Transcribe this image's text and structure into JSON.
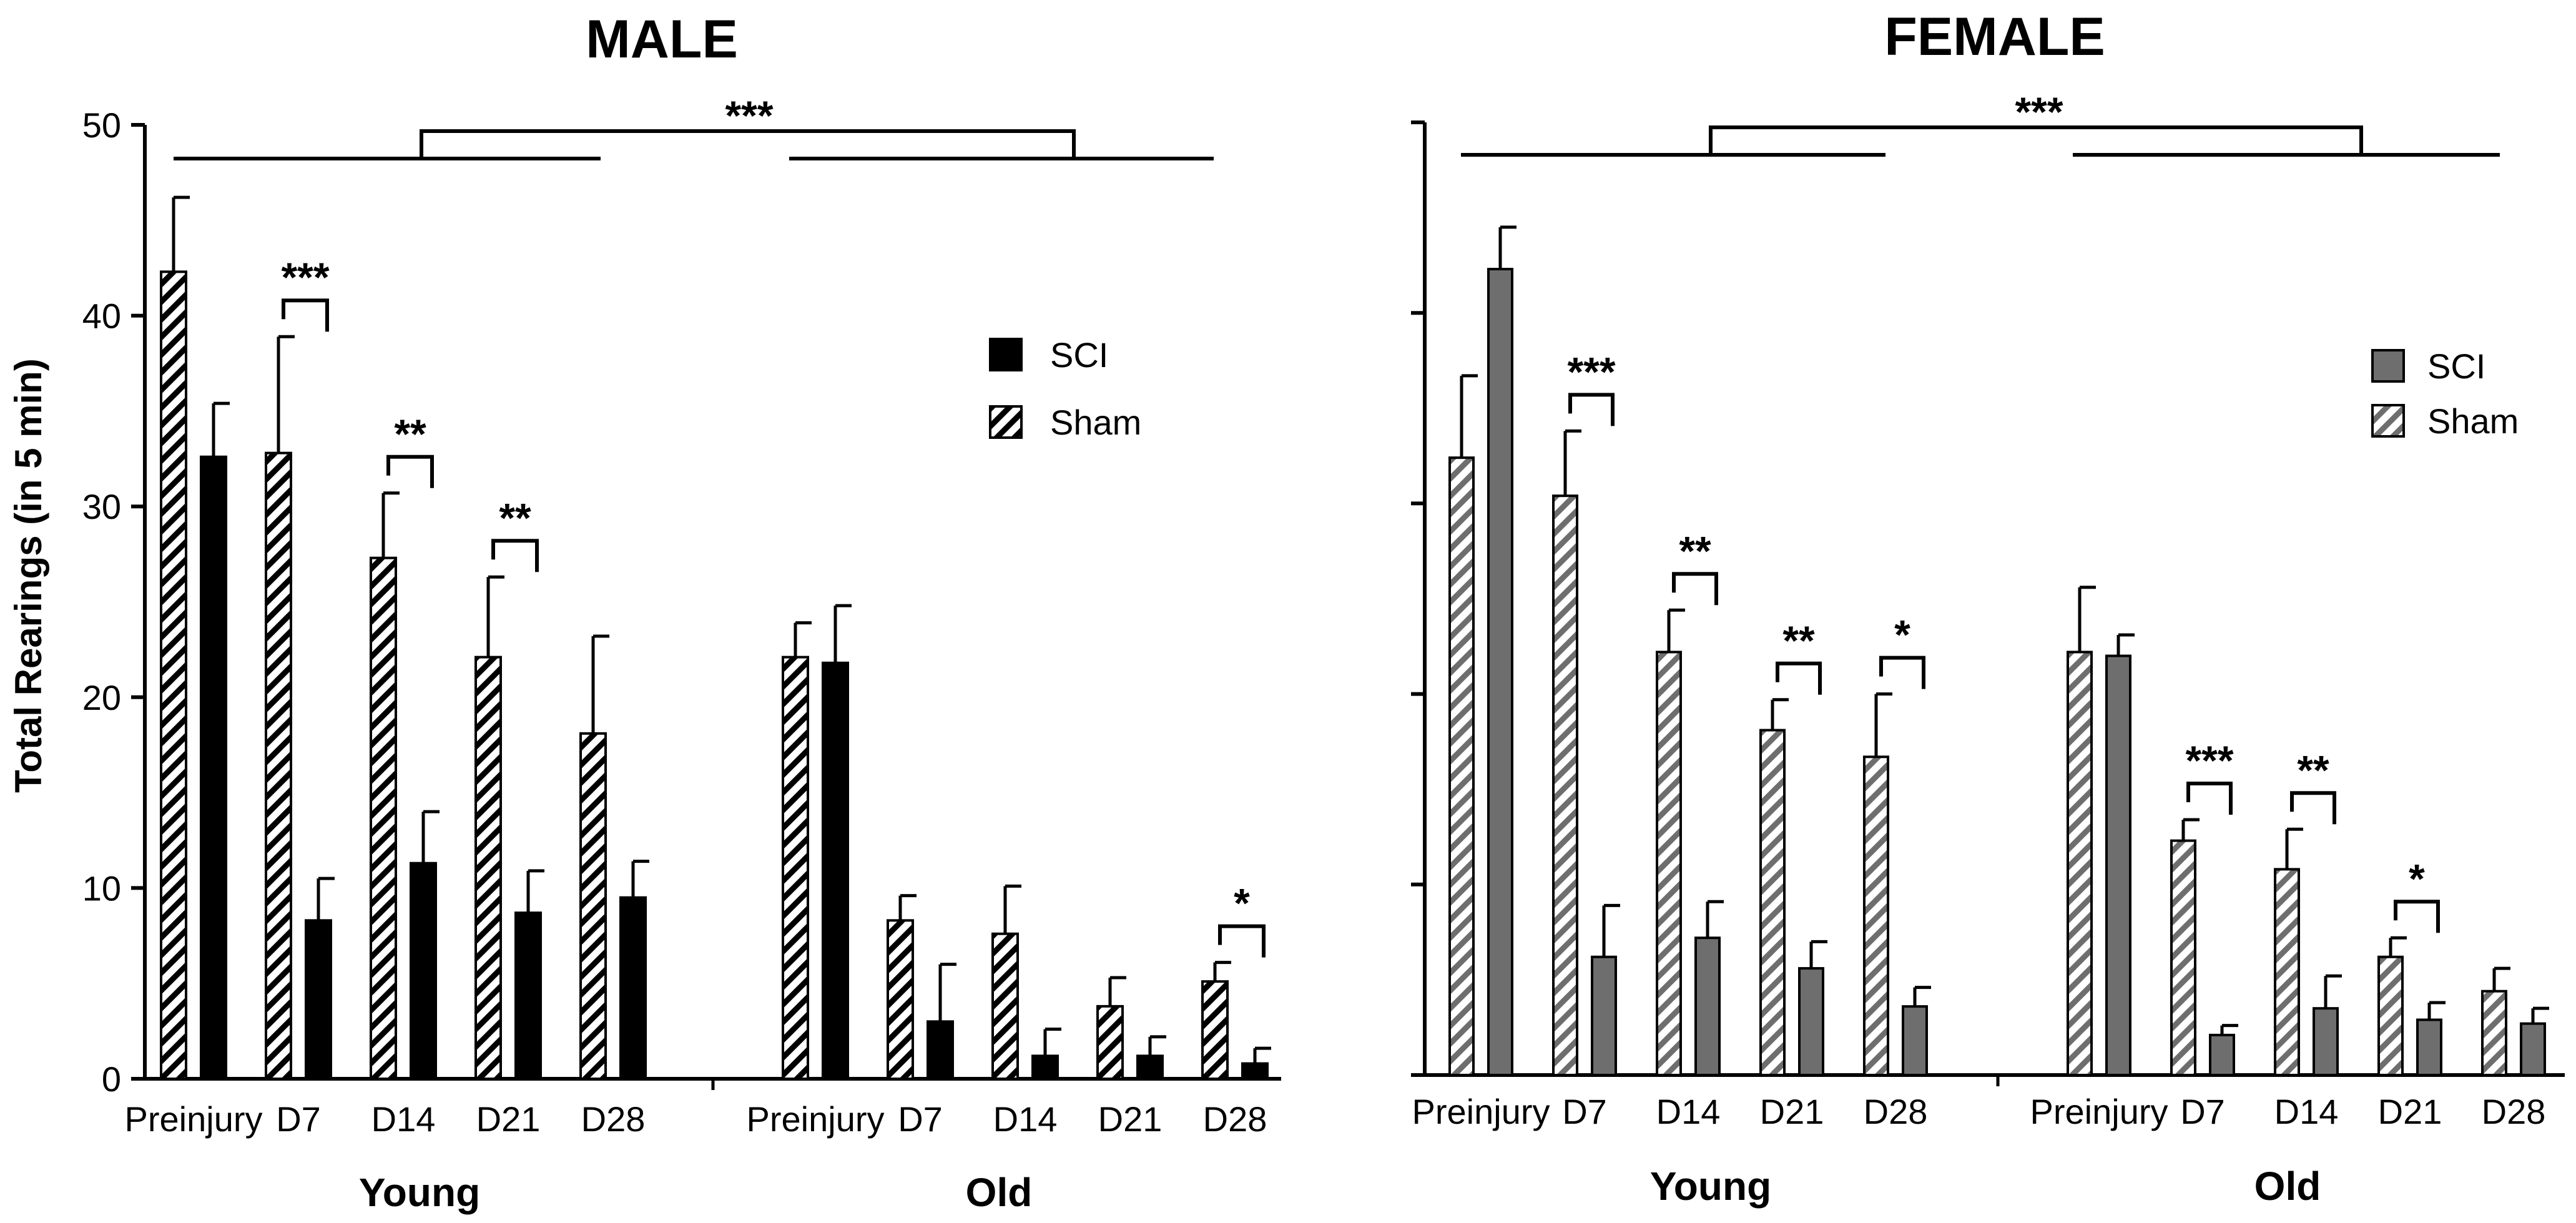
{
  "chart_data": [
    {
      "type": "bar",
      "title": "MALE",
      "xlabel": "",
      "ylabel": "Total Rearings (in 5 min)",
      "ylim": [
        0,
        50
      ],
      "yticks": [
        0,
        10,
        20,
        30,
        40,
        50
      ],
      "groups": [
        "Young",
        "Old"
      ],
      "categories": [
        "Preinjury",
        "D7",
        "D14",
        "D21",
        "D28"
      ],
      "legend": [
        "SCI",
        "Sham"
      ],
      "legend_position": "top-right",
      "series": [
        {
          "name": "Sham",
          "young": [
            42.3,
            32.8,
            27.3,
            22.1,
            18.1
          ],
          "young_err": [
            3.9,
            6.1,
            3.4,
            4.2,
            5.1
          ],
          "old": [
            22.1,
            8.3,
            7.6,
            3.8,
            5.1
          ],
          "old_err": [
            1.8,
            1.3,
            2.5,
            1.5,
            1.0
          ]
        },
        {
          "name": "SCI",
          "young": [
            32.6,
            8.3,
            11.3,
            8.7,
            9.5
          ],
          "young_err": [
            2.8,
            2.2,
            2.7,
            2.2,
            1.9
          ],
          "old": [
            21.8,
            3.0,
            1.2,
            1.2,
            0.8
          ],
          "old_err": [
            3.0,
            3.0,
            1.4,
            1.0,
            0.8
          ]
        }
      ],
      "significance": {
        "young": [
          "",
          "***",
          "**",
          "**",
          ""
        ],
        "old": [
          "",
          "",
          "",
          "",
          "*"
        ],
        "group": "***"
      }
    },
    {
      "type": "bar",
      "title": "FEMALE",
      "xlabel": "",
      "ylabel": "",
      "ylim": [
        0,
        50
      ],
      "groups": [
        "Young",
        "Old"
      ],
      "categories": [
        "Preinjury",
        "D7",
        "D14",
        "D21",
        "D28"
      ],
      "legend": [
        "SCI",
        "Sham"
      ],
      "legend_position": "top-right",
      "series": [
        {
          "name": "Sham",
          "young": [
            32.4,
            30.4,
            22.2,
            18.1,
            16.7
          ],
          "young_err": [
            4.3,
            3.4,
            2.2,
            1.6,
            3.3
          ],
          "old": [
            22.2,
            12.3,
            10.8,
            6.2,
            4.4
          ],
          "old_err": [
            3.4,
            1.1,
            2.1,
            1.0,
            1.2
          ]
        },
        {
          "name": "SCI",
          "young": [
            42.3,
            6.2,
            7.2,
            5.6,
            3.6
          ],
          "young_err": [
            2.2,
            2.7,
            1.9,
            1.4,
            1.0
          ],
          "old": [
            22.0,
            2.1,
            3.5,
            2.9,
            2.7
          ],
          "old_err": [
            1.1,
            0.5,
            1.7,
            0.9,
            0.8
          ]
        }
      ],
      "significance": {
        "young": [
          "",
          "***",
          "**",
          "**",
          "*"
        ],
        "old": [
          "",
          "***",
          "**",
          "*",
          ""
        ],
        "group": "***"
      }
    }
  ]
}
